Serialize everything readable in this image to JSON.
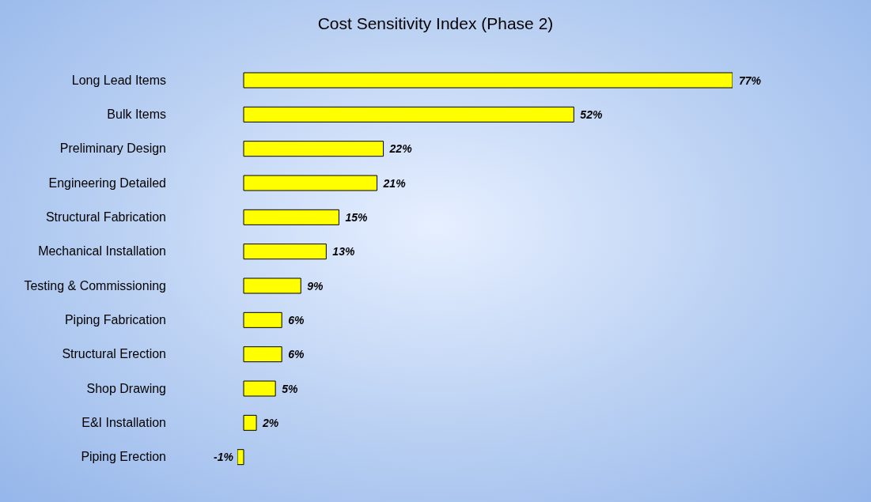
{
  "chart_data": {
    "type": "bar",
    "orientation": "horizontal",
    "title": "Cost Sensitivity Index (Phase 2)",
    "categories": [
      "Long Lead Items",
      "Bulk Items",
      "Preliminary Design",
      "Engineering Detailed",
      "Structural Fabrication",
      "Mechanical Installation",
      "Testing & Commissioning",
      "Piping Fabrication",
      "Structural Erection",
      "Shop Drawing",
      "E&I Installation",
      "Piping Erection"
    ],
    "values": [
      77,
      52,
      22,
      21,
      15,
      13,
      9,
      6,
      6,
      5,
      2,
      -1
    ],
    "value_labels": [
      "77%",
      "52%",
      "22%",
      "21%",
      "15%",
      "13%",
      "9%",
      "6%",
      "6%",
      "5%",
      "2%",
      "-1%"
    ],
    "color": "#ffff00"
  }
}
